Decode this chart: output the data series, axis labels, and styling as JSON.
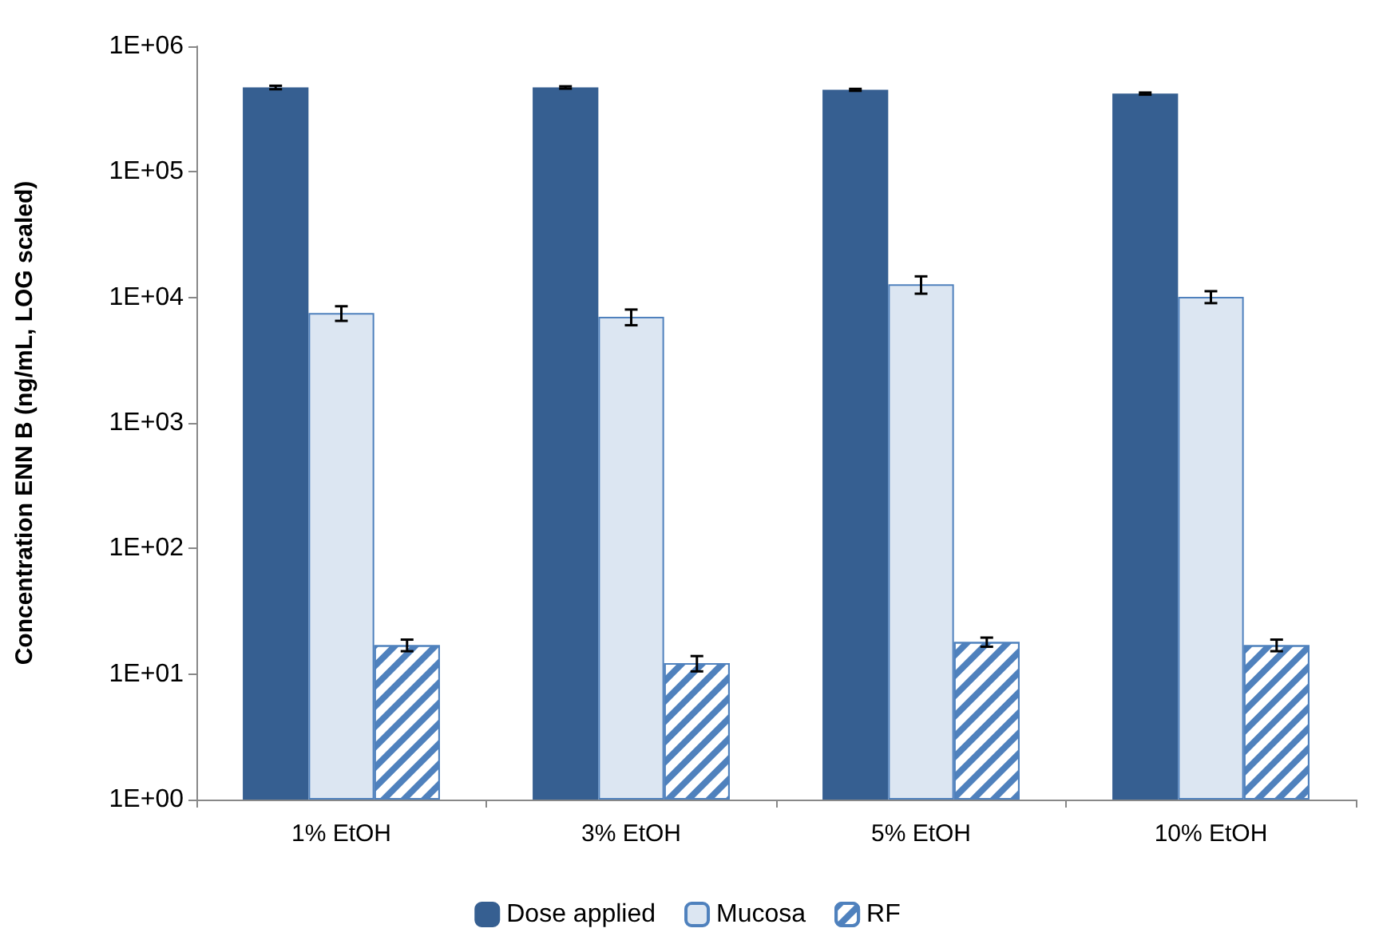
{
  "chart_data": {
    "type": "bar",
    "ylabel": "Concentration ENN B (ng/mL, LOG scaled)",
    "categories": [
      "1% EtOH",
      "3% EtOH",
      "5% EtOH",
      "10% EtOH"
    ],
    "series": [
      {
        "name": "Dose applied",
        "color": "#365f91",
        "values": [
          470000,
          470000,
          450000,
          420000
        ],
        "errors": [
          15000,
          10000,
          8000,
          8000
        ]
      },
      {
        "name": "Mucosa",
        "color": "#dce6f2",
        "values": [
          7500,
          7000,
          12700,
          10100
        ],
        "errors": [
          1000,
          1000,
          2000,
          1100
        ]
      },
      {
        "name": "RF",
        "color": "#4f81bd",
        "values": [
          17,
          12.2,
          18,
          17
        ],
        "errors": [
          1.8,
          1.7,
          1.5,
          1.8
        ]
      }
    ],
    "log": true,
    "ylim": [
      1,
      1000000
    ],
    "yticks": [
      {
        "value": 1,
        "label": "1E+00"
      },
      {
        "value": 10,
        "label": "1E+01"
      },
      {
        "value": 100,
        "label": "1E+02"
      },
      {
        "value": 1000,
        "label": "1E+03"
      },
      {
        "value": 10000,
        "label": "1E+04"
      },
      {
        "value": 100000,
        "label": "1E+05"
      },
      {
        "value": 1000000,
        "label": "1E+06"
      }
    ],
    "grid": false,
    "legend": "bottom"
  }
}
